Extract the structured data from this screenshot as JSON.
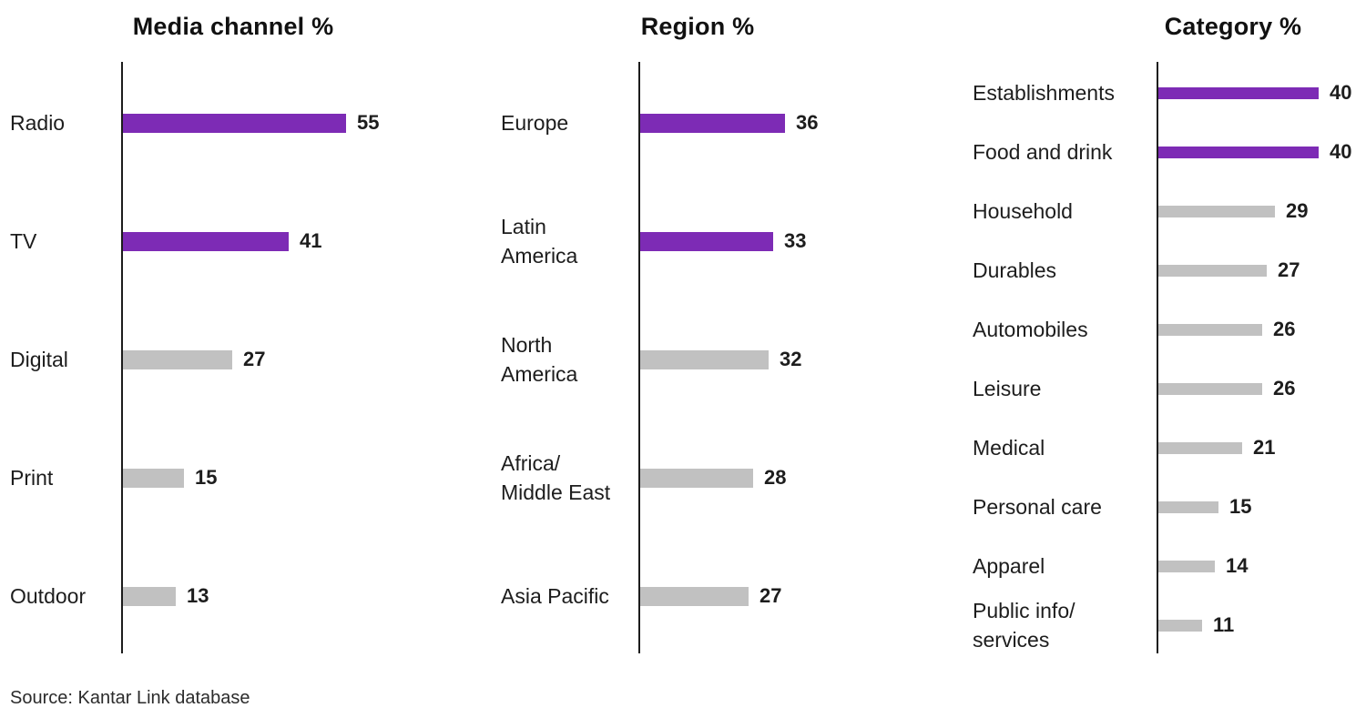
{
  "source": "Source: Kantar Link database",
  "colors": {
    "highlight": "#7D2BB5",
    "base": "#C1C1C1",
    "axis": "#1C1C1C",
    "text": "#1D1D1D"
  },
  "chart_data": [
    {
      "type": "bar",
      "orientation": "horizontal",
      "title": "Media channel %",
      "legend": "none",
      "grid": false,
      "bars": [
        {
          "label": "Radio",
          "value": 55,
          "highlighted": true
        },
        {
          "label": "TV",
          "value": 41,
          "highlighted": true
        },
        {
          "label": "Digital",
          "value": 27,
          "highlighted": false
        },
        {
          "label": "Print",
          "value": 15,
          "highlighted": false
        },
        {
          "label": "Outdoor",
          "value": 13,
          "highlighted": false
        }
      ]
    },
    {
      "type": "bar",
      "orientation": "horizontal",
      "title": "Region %",
      "legend": "none",
      "grid": false,
      "bars": [
        {
          "label": "Europe",
          "value": 36,
          "highlighted": true
        },
        {
          "label": "Latin\nAmerica",
          "value": 33,
          "highlighted": true
        },
        {
          "label": "North\nAmerica",
          "value": 32,
          "highlighted": false
        },
        {
          "label": "Africa/\nMiddle East",
          "value": 28,
          "highlighted": false
        },
        {
          "label": "Asia Pacific",
          "value": 27,
          "highlighted": false
        }
      ]
    },
    {
      "type": "bar",
      "orientation": "horizontal",
      "title": "Category %",
      "legend": "none",
      "grid": false,
      "bars": [
        {
          "label": "Establishments",
          "value": 40,
          "highlighted": true
        },
        {
          "label": "Food and drink",
          "value": 40,
          "highlighted": true
        },
        {
          "label": "Household",
          "value": 29,
          "highlighted": false
        },
        {
          "label": "Durables",
          "value": 27,
          "highlighted": false
        },
        {
          "label": "Automobiles",
          "value": 26,
          "highlighted": false
        },
        {
          "label": "Leisure",
          "value": 26,
          "highlighted": false
        },
        {
          "label": "Medical",
          "value": 21,
          "highlighted": false
        },
        {
          "label": "Personal care",
          "value": 15,
          "highlighted": false
        },
        {
          "label": "Apparel",
          "value": 14,
          "highlighted": false
        },
        {
          "label": "Public info/\nservices",
          "value": 11,
          "highlighted": false
        }
      ]
    }
  ]
}
